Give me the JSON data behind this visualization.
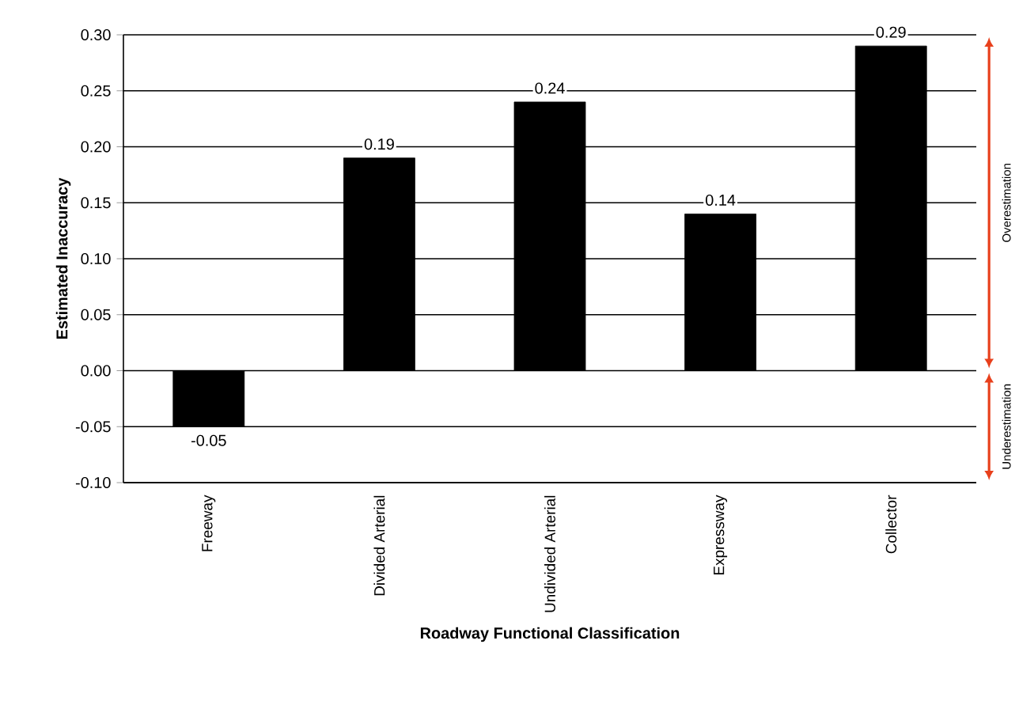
{
  "chart_data": {
    "type": "bar",
    "xlabel": "Roadway Functional Classification",
    "ylabel": "Estimated Inaccuracy",
    "categories": [
      "Freeway",
      "Divided Arterial",
      "Undivided Arterial",
      "Expressway",
      "Collector"
    ],
    "values": [
      -0.05,
      0.19,
      0.24,
      0.14,
      0.29
    ],
    "color": "#000000",
    "ylim": [
      -0.1,
      0.3
    ],
    "yticks": [
      {
        "value": -0.1,
        "label": "-0.10"
      },
      {
        "value": -0.05,
        "label": "-0.05"
      },
      {
        "value": 0,
        "label": "0.00"
      },
      {
        "value": 0.05,
        "label": "0.05"
      },
      {
        "value": 0.1,
        "label": "0.10"
      },
      {
        "value": 0.15,
        "label": "0.15"
      },
      {
        "value": 0.2,
        "label": "0.20"
      },
      {
        "value": 0.25,
        "label": "0.25"
      },
      {
        "value": 0.3,
        "label": "0.30"
      }
    ],
    "grid": "y",
    "data_labels": true,
    "annotations": [
      "Overestimation",
      "Underestimation"
    ]
  }
}
